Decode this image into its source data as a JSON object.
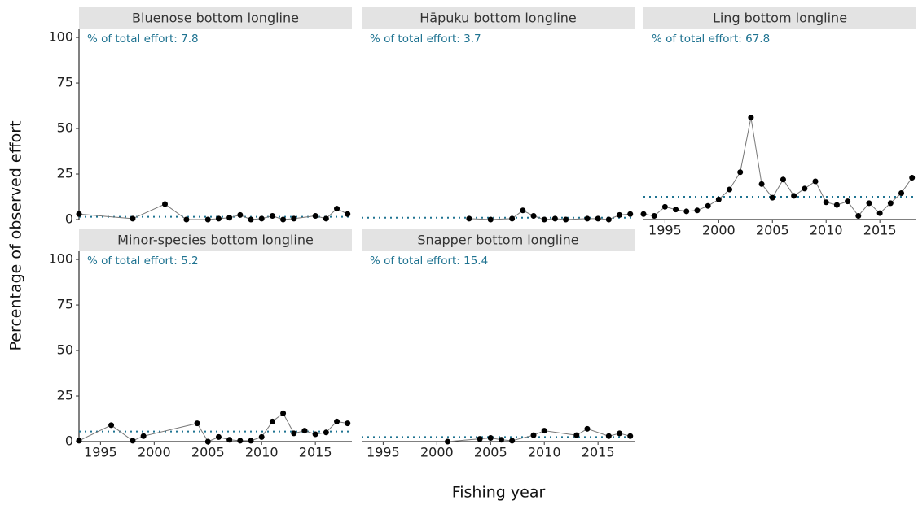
{
  "chart_data": [
    {
      "type": "line",
      "title": "Bluenose bottom longline",
      "annotation": "% of total effort: 7.8",
      "x": [
        1993,
        1998,
        2001,
        2003,
        2005,
        2006,
        2007,
        2008,
        2009,
        2010,
        2011,
        2012,
        2013,
        2015,
        2016,
        2017,
        2018
      ],
      "values": [
        3,
        0.5,
        8.5,
        0,
        0,
        0.5,
        1,
        2.5,
        0,
        0.5,
        2,
        0,
        0.5,
        2,
        0.5,
        6,
        3
      ],
      "reference": 1.5,
      "xlim": [
        1993,
        2018.4
      ],
      "ylim": [
        0,
        104.5
      ],
      "yticks": [
        0,
        25,
        50,
        75,
        100
      ]
    },
    {
      "type": "line",
      "title": "Hāpuku bottom longline",
      "annotation": "% of total effort: 3.7",
      "x": [
        2003,
        2005,
        2007,
        2008,
        2009,
        2010,
        2011,
        2012,
        2014,
        2015,
        2016,
        2017,
        2018
      ],
      "values": [
        0.5,
        0,
        0.5,
        5,
        2,
        0,
        0.5,
        0,
        0.5,
        0.5,
        0,
        2.5,
        3
      ],
      "reference": 1,
      "xlim": [
        1993,
        2018.4
      ],
      "ylim": [
        0,
        104.5
      ]
    },
    {
      "type": "line",
      "title": "Ling bottom longline",
      "annotation": "% of total effort: 67.8",
      "x": [
        1993,
        1994,
        1995,
        1996,
        1997,
        1998,
        1999,
        2000,
        2001,
        2002,
        2003,
        2004,
        2005,
        2006,
        2007,
        2008,
        2009,
        2010,
        2011,
        2012,
        2013,
        2014,
        2015,
        2016,
        2017,
        2018
      ],
      "values": [
        3,
        2,
        7,
        5.5,
        4.5,
        5,
        7.5,
        11,
        16.5,
        26,
        56,
        19.5,
        12,
        22,
        13,
        17,
        21,
        9.5,
        8,
        10,
        2,
        9,
        3.5,
        9,
        14.5,
        23
      ],
      "reference": 12.5,
      "xlim": [
        1993,
        2018.4
      ],
      "ylim": [
        0,
        104.5
      ],
      "xticks": [
        1995,
        2000,
        2005,
        2010,
        2015
      ]
    },
    {
      "type": "line",
      "title": "Minor-species bottom longline",
      "annotation": "% of total effort: 5.2",
      "x": [
        1993,
        1996,
        1998,
        1999,
        2004,
        2005,
        2006,
        2007,
        2008,
        2009,
        2010,
        2011,
        2012,
        2013,
        2014,
        2015,
        2016,
        2017,
        2018
      ],
      "values": [
        0.5,
        9,
        0.5,
        3,
        10,
        0,
        2.5,
        1,
        0.5,
        0.5,
        2.5,
        11,
        15.5,
        4.5,
        6,
        4,
        5,
        11,
        10
      ],
      "reference": 5.5,
      "xlim": [
        1993,
        2018.4
      ],
      "ylim": [
        0,
        104.5
      ],
      "yticks": [
        0,
        25,
        50,
        75,
        100
      ],
      "xticks": [
        1995,
        2000,
        2005,
        2010,
        2015
      ]
    },
    {
      "type": "line",
      "title": "Snapper bottom longline",
      "annotation": "% of total effort: 15.4",
      "x": [
        2001,
        2004,
        2005,
        2006,
        2007,
        2009,
        2010,
        2013,
        2014,
        2016,
        2017,
        2018
      ],
      "values": [
        0,
        1.5,
        2,
        1,
        0.5,
        3.5,
        6,
        3.5,
        7,
        3,
        4.5,
        3
      ],
      "reference": 2.5,
      "xlim": [
        1993,
        2018.4
      ],
      "ylim": [
        0,
        104.5
      ],
      "xticks": [
        1995,
        2000,
        2005,
        2010,
        2015
      ]
    }
  ],
  "xlabel": "Fishing year",
  "ylabel": "Percentage of observed effort",
  "line_color": "#777777",
  "point_color": "#000000",
  "reference_color": "#1f7391",
  "strip_color": "#e3e3e3"
}
